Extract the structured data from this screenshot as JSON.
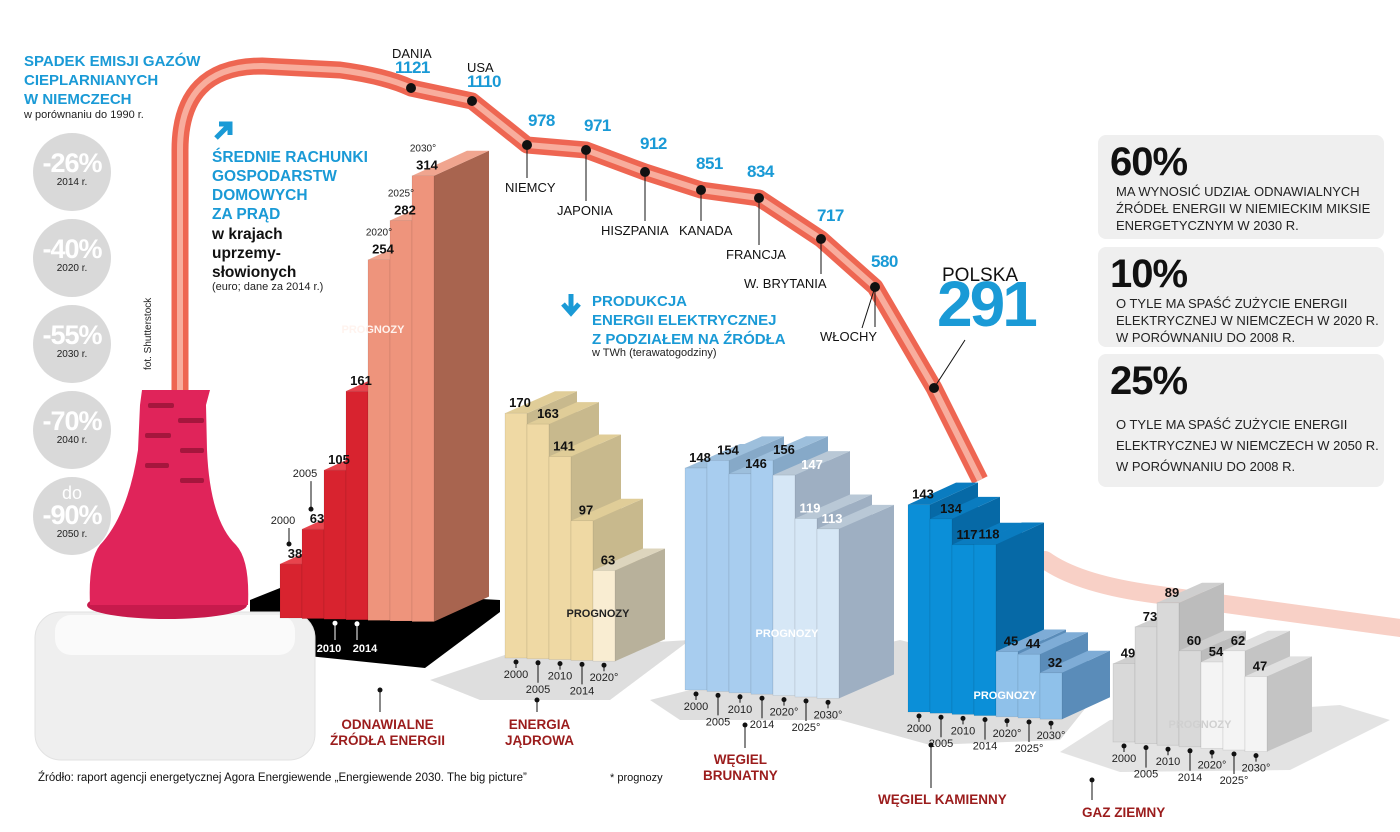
{
  "emissions": {
    "title_lines": [
      "SPADEK EMISJI GAZÓW",
      "CIEPLARNIANYCH",
      "W NIEMCZECH"
    ],
    "subtitle": "w porównaniu do 1990 r.",
    "items": [
      {
        "prefix": "",
        "value": "-26%",
        "year": "2014 r."
      },
      {
        "prefix": "",
        "value": "-40%",
        "year": "2020 r."
      },
      {
        "prefix": "",
        "value": "-55%",
        "year": "2030 r."
      },
      {
        "prefix": "",
        "value": "-70%",
        "year": "2040 r."
      },
      {
        "prefix": "do",
        "value": "-90%",
        "year": "2050 r."
      }
    ]
  },
  "prices": {
    "title_lines": [
      "ŚREDNIE RACHUNKI",
      "GOSPODARSTW",
      "DOMOWYCH",
      "ZA PRĄD"
    ],
    "subtitle_lines": [
      "w krajach",
      "uprzemy-",
      "słowionych"
    ],
    "note": "(euro; dane za 2014 r.)",
    "arrow_icon": "arrow-up-right-icon"
  },
  "production": {
    "title_lines": [
      "PRODUKCJA",
      "ENERGII ELEKTRYCZNEJ",
      "Z PODZIAŁEM NA ŹRÓDŁA"
    ],
    "unit": "w TWh (terawatogodziny)",
    "arrow_icon": "arrow-down-icon",
    "forecast_label": "PROGNOZY"
  },
  "facts": [
    {
      "value": "60%",
      "text_lines": [
        "MA WYNOSIĆ UDZIAŁ ODNAWIALNYCH",
        "ŹRÓDEŁ ENERGII W NIEMIECKIM MIKSIE",
        "ENERGETYCZNYM W 2030 R."
      ]
    },
    {
      "value": "10%",
      "text_lines": [
        "O TYLE MA SPAŚĆ ZUŻYCIE ENERGII",
        "ELEKTRYCZNEJ W NIEMCZECH W 2020 R.",
        "W PORÓWNANIU DO 2008 R."
      ]
    },
    {
      "value": "25%",
      "text_lines": [
        "O TYLE MA SPAŚĆ ZUŻYCIE ENERGII",
        "ELEKTRYCZNEJ W NIEMCZECH W 2050 R.",
        "W PORÓWNANIU DO 2008 R."
      ]
    }
  ],
  "footer": {
    "source": "Źródło: raport agencji energetycznej Agora Energiewende „Energiewende 2030. The big picture”",
    "footnote": "* prognozy",
    "photo_credit": "fot. Shutterstock"
  },
  "colors": {
    "accent_blue": "#1a9ad6",
    "category_red": "#9b1c1c",
    "cable": "#ef6a55",
    "plug": "#e0245a"
  },
  "chart_data": [
    {
      "type": "line",
      "title": "ŚREDNIE RACHUNKI GOSPODARSTW DOMOWYCH ZA PRĄD",
      "categories": [
        "DANIA",
        "USA",
        "NIEMCY",
        "JAPONIA",
        "HISZPANIA",
        "KANADA",
        "FRANCJA",
        "W. BRYTANIA",
        "WŁOCHY",
        "POLSKA"
      ],
      "values": [
        1121,
        1110,
        978,
        971,
        912,
        851,
        834,
        717,
        580,
        291
      ]
    },
    {
      "type": "bar",
      "name": "ODNAWIALNE ŹRÓDŁA ENERGII",
      "name_lines": [
        "ODNAWIALNE",
        "ŹRÓDŁA ENERGII"
      ],
      "categories": [
        "2000",
        "2005",
        "2010",
        "2014",
        "2020*",
        "2025*",
        "2030*"
      ],
      "year_labels": [
        "2000",
        "2005",
        "2010",
        "2014",
        "2020°",
        "2025°",
        "2030°"
      ],
      "values": [
        38,
        63,
        105,
        161,
        254,
        282,
        314
      ],
      "forecast_from": 4
    },
    {
      "type": "bar",
      "name": "ENERGIA JĄDROWA",
      "name_lines": [
        "ENERGIA",
        "JĄDROWA"
      ],
      "categories": [
        "2000",
        "2005",
        "2010",
        "2014",
        "2020*"
      ],
      "year_labels": [
        "2000",
        "2005",
        "2010",
        "2014",
        "2020°"
      ],
      "values": [
        170,
        163,
        141,
        97,
        63
      ],
      "forecast_from": 4
    },
    {
      "type": "bar",
      "name": "WĘGIEL BRUNATNY",
      "name_lines": [
        "WĘGIEL",
        "BRUNATNY"
      ],
      "categories": [
        "2000",
        "2005",
        "2010",
        "2014",
        "2020*",
        "2025*",
        "2030*"
      ],
      "year_labels": [
        "2000",
        "2005",
        "2010",
        "2014",
        "2020°",
        "2025°",
        "2030°"
      ],
      "values": [
        148,
        154,
        146,
        156,
        147,
        119,
        113
      ],
      "forecast_from": 4
    },
    {
      "type": "bar",
      "name": "WĘGIEL KAMIENNY",
      "name_lines": [
        "WĘGIEL KAMIENNY"
      ],
      "categories": [
        "2000",
        "2005",
        "2010",
        "2014",
        "2020*",
        "2025*",
        "2030*"
      ],
      "year_labels": [
        "2000",
        "2005",
        "2010",
        "2014",
        "2020°",
        "2025°",
        "2030°"
      ],
      "values": [
        143,
        134,
        117,
        118,
        45,
        44,
        32
      ],
      "forecast_from": 4
    },
    {
      "type": "bar",
      "name": "GAZ ZIEMNY",
      "name_lines": [
        "GAZ ZIEMNY"
      ],
      "categories": [
        "2000",
        "2005",
        "2010",
        "2014",
        "2020*",
        "2025*",
        "2030*"
      ],
      "year_labels": [
        "2000",
        "2005",
        "2010",
        "2014",
        "2020°",
        "2025°",
        "2030°"
      ],
      "values": [
        49,
        73,
        89,
        60,
        54,
        62,
        47
      ],
      "forecast_from": 4
    }
  ]
}
